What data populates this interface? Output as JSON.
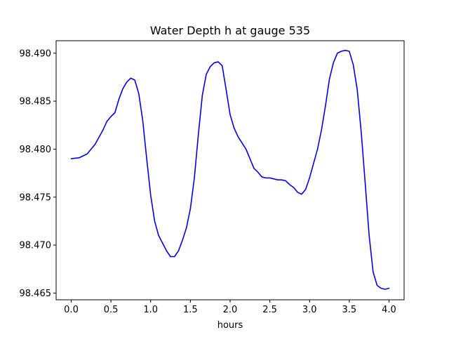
{
  "chart_data": {
    "type": "line",
    "title": "Water Depth h at gauge 535",
    "xlabel": "hours",
    "ylabel": "",
    "xlim": [
      -0.19,
      4.19
    ],
    "ylim": [
      98.4643,
      98.4913
    ],
    "grid": false,
    "x_ticks": [
      0.0,
      0.5,
      1.0,
      1.5,
      2.0,
      2.5,
      3.0,
      3.5,
      4.0
    ],
    "x_tick_labels": [
      "0.0",
      "0.5",
      "1.0",
      "1.5",
      "2.0",
      "2.5",
      "3.0",
      "3.5",
      "4.0"
    ],
    "y_ticks": [
      98.465,
      98.47,
      98.475,
      98.48,
      98.485,
      98.49
    ],
    "y_tick_labels": [
      "98.465",
      "98.470",
      "98.475",
      "98.480",
      "98.485",
      "98.490"
    ],
    "series": [
      {
        "color": "#0000ff",
        "x": [
          0.0,
          0.1,
          0.2,
          0.3,
          0.4,
          0.45,
          0.5,
          0.55,
          0.6,
          0.65,
          0.7,
          0.75,
          0.8,
          0.85,
          0.9,
          0.95,
          1.0,
          1.05,
          1.1,
          1.15,
          1.2,
          1.25,
          1.3,
          1.35,
          1.4,
          1.45,
          1.5,
          1.55,
          1.6,
          1.65,
          1.7,
          1.75,
          1.8,
          1.85,
          1.9,
          1.95,
          2.0,
          2.05,
          2.1,
          2.2,
          2.25,
          2.3,
          2.35,
          2.4,
          2.45,
          2.5,
          2.55,
          2.6,
          2.65,
          2.7,
          2.75,
          2.8,
          2.85,
          2.9,
          2.95,
          3.0,
          3.05,
          3.1,
          3.15,
          3.2,
          3.25,
          3.3,
          3.35,
          3.4,
          3.45,
          3.5,
          3.55,
          3.6,
          3.65,
          3.7,
          3.75,
          3.8,
          3.85,
          3.9,
          3.95,
          4.0
        ],
        "y": [
          98.479,
          98.4791,
          98.4795,
          98.4805,
          98.482,
          98.4829,
          98.4834,
          98.4838,
          98.4852,
          98.4863,
          98.487,
          98.4874,
          98.4872,
          98.4858,
          98.483,
          98.479,
          98.4752,
          98.4725,
          98.471,
          98.4702,
          98.4694,
          98.4688,
          98.4688,
          98.4694,
          98.4705,
          98.4718,
          98.4738,
          98.477,
          98.4815,
          98.4856,
          98.4878,
          98.4886,
          98.489,
          98.4891,
          98.4887,
          98.4862,
          98.4836,
          98.4822,
          98.4813,
          98.48,
          98.479,
          98.478,
          98.4776,
          98.4771,
          98.477,
          98.477,
          98.4769,
          98.4768,
          98.4768,
          98.4767,
          98.4763,
          98.476,
          98.4755,
          98.4753,
          98.4758,
          98.477,
          98.4785,
          98.48,
          98.482,
          98.4845,
          98.4873,
          98.489,
          98.49,
          98.4902,
          98.4903,
          98.4902,
          98.4888,
          98.4862,
          98.4818,
          98.4765,
          98.471,
          98.4672,
          98.4658,
          98.4655,
          98.4654,
          98.4655
        ]
      }
    ]
  }
}
